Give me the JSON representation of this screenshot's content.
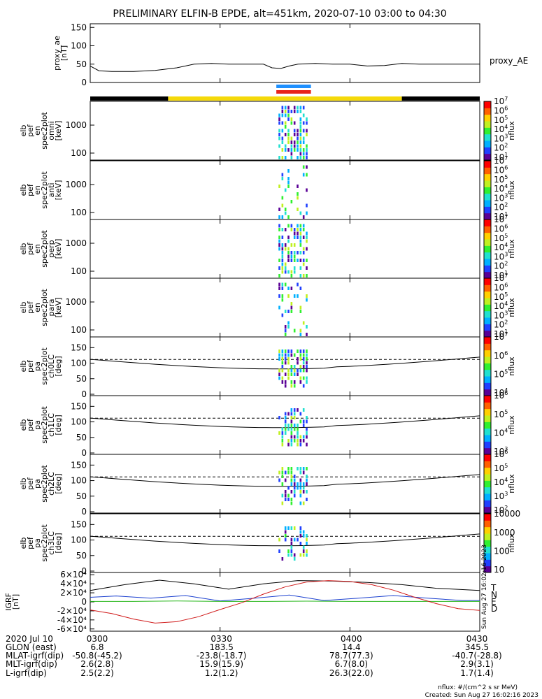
{
  "title": "PRELIMINARY ELFIN-B EPDE, alt=451km, 2020-07-10 03:00 to 04:30",
  "colors": {
    "blue_bar": "#1e90ff",
    "red_bar": "#e8241b",
    "sun_bar": "#f5d90a",
    "dark_bar": "#000000",
    "grf_T": "#000000",
    "grf_N": "#1a3fcf",
    "grf_E": "#2bb81f",
    "grf_D": "#d01a1a"
  },
  "time_axis": {
    "start": "03:00",
    "end": "04:30",
    "ticks": [
      "0300",
      "0330",
      "0400",
      "0430"
    ],
    "tick_minutes": [
      0,
      30,
      60,
      90
    ]
  },
  "eclipse_bar": {
    "segments": [
      {
        "state": "shadow",
        "from_min": 0,
        "to_min": 18
      },
      {
        "state": "sunlight",
        "from_min": 18,
        "to_min": 72
      },
      {
        "state": "shadow",
        "from_min": 72,
        "to_min": 90
      }
    ]
  },
  "science_bars": {
    "from_min": 43,
    "to_min": 51
  },
  "chart_data": [
    {
      "type": "line",
      "id": "proxy_ae",
      "ylabel": "proxy_ae\n[nT]",
      "yticks": [
        0,
        50,
        100,
        150
      ],
      "ylim": [
        0,
        160
      ],
      "legend": "proxy_AE",
      "x_min": [
        0,
        2,
        5,
        10,
        15,
        20,
        24,
        28,
        32,
        36,
        40,
        42,
        44,
        46,
        48,
        52,
        56,
        60,
        64,
        68,
        72,
        76,
        80,
        85,
        90
      ],
      "y": [
        45,
        32,
        30,
        30,
        33,
        40,
        50,
        52,
        50,
        50,
        50,
        40,
        38,
        45,
        50,
        52,
        50,
        50,
        45,
        46,
        52,
        50,
        50,
        50,
        50
      ]
    },
    {
      "type": "heatmap",
      "id": "en_omni",
      "ylabel": "elb\npef\nen\nspec2plot\nomni\n[keV]",
      "yticks": [
        "100",
        "1000"
      ],
      "colorbar": {
        "label": "nflux",
        "ticks": [
          "10^1",
          "10^2",
          "10^3",
          "10^4",
          "10^5",
          "10^6",
          "10^7"
        ]
      }
    },
    {
      "type": "heatmap",
      "id": "en_anti",
      "ylabel": "elb\npef\nen\nspec2plot\nanti\n[keV]",
      "yticks": [
        "100",
        "1000"
      ],
      "colorbar": {
        "label": "nflux",
        "ticks": [
          "10^1",
          "10^2",
          "10^3",
          "10^4",
          "10^5",
          "10^6",
          "10^7"
        ]
      }
    },
    {
      "type": "heatmap",
      "id": "en_perp",
      "ylabel": "elb\npef\nen\nspec2plot\nperp\n[keV]",
      "yticks": [
        "100",
        "1000"
      ],
      "colorbar": {
        "label": "nflux",
        "ticks": [
          "10^1",
          "10^2",
          "10^3",
          "10^4",
          "10^5",
          "10^6",
          "10^7"
        ]
      }
    },
    {
      "type": "heatmap",
      "id": "en_para",
      "ylabel": "elb\npef\nen\nspec2plot\npara\n[keV]",
      "yticks": [
        "100",
        "1000"
      ],
      "colorbar": {
        "label": "nflux",
        "ticks": [
          "10^1",
          "10^2",
          "10^3",
          "10^4",
          "10^5",
          "10^6",
          "10^7"
        ]
      }
    },
    {
      "type": "heatmap",
      "id": "pa_ch0",
      "ylabel": "elb\npef\npa\nspec2plot\nch0LC\n[deg]",
      "yticks": [
        "0",
        "50",
        "100",
        "150"
      ],
      "colorbar": {
        "label": "nflux",
        "ticks": [
          "10^4",
          "10^5",
          "10^6",
          "10^7"
        ]
      }
    },
    {
      "type": "heatmap",
      "id": "pa_ch1",
      "ylabel": "elb\npef\npa\nspec2plot\nch1LC\n[deg]",
      "yticks": [
        "0",
        "50",
        "100",
        "150"
      ],
      "colorbar": {
        "label": "nflux",
        "ticks": [
          "10^3",
          "10^4",
          "10^5",
          "10^6"
        ]
      }
    },
    {
      "type": "heatmap",
      "id": "pa_ch2",
      "ylabel": "elb\npef\npa\nspec2plot\nch2LC\n[deg]",
      "yticks": [
        "0",
        "50",
        "100",
        "150"
      ],
      "colorbar": {
        "label": "nflux",
        "ticks": [
          "10^2",
          "10^3",
          "10^4",
          "10^5",
          "10^6"
        ]
      }
    },
    {
      "type": "heatmap",
      "id": "pa_ch3",
      "ylabel": "elb\npef\npa\nspec2plot\nch3LC\n[deg]",
      "yticks": [
        "0",
        "50",
        "100",
        "150"
      ],
      "colorbar": {
        "label": "nflux",
        "ticks": [
          "10",
          "100",
          "1000",
          "10000"
        ]
      }
    },
    {
      "type": "line",
      "id": "igrf",
      "ylabel": "IGRF\n[nT]",
      "yticks": [
        "-6×10⁴",
        "-4×10⁴",
        "-2×10⁴",
        "0",
        "2×10⁴",
        "4×10⁴",
        "6×10⁴"
      ],
      "ylim": [
        -65000,
        65000
      ],
      "legend": [
        "T",
        "N",
        "E",
        "D"
      ],
      "series": [
        {
          "name": "T",
          "x_min": [
            0,
            8,
            16,
            24,
            32,
            40,
            48,
            56,
            64,
            72,
            80,
            90
          ],
          "y": [
            25000,
            38000,
            48000,
            40000,
            28000,
            40000,
            47000,
            46000,
            43000,
            38000,
            30000,
            25000
          ]
        },
        {
          "name": "N",
          "x_min": [
            0,
            6,
            14,
            22,
            30,
            38,
            46,
            54,
            62,
            70,
            78,
            86,
            90
          ],
          "y": [
            10000,
            13000,
            8000,
            14000,
            2000,
            8000,
            15000,
            3000,
            8000,
            14000,
            8000,
            3000,
            3000
          ]
        },
        {
          "name": "E",
          "x_min": [
            0,
            10,
            20,
            30,
            40,
            50,
            60,
            70,
            80,
            90
          ],
          "y": [
            1000,
            1000,
            2000,
            1000,
            1000,
            1500,
            1000,
            1000,
            1000,
            1000
          ]
        },
        {
          "name": "D",
          "x_min": [
            0,
            5,
            10,
            15,
            20,
            25,
            30,
            35,
            40,
            45,
            50,
            55,
            60,
            65,
            70,
            75,
            80,
            85,
            90
          ],
          "y": [
            -18000,
            -26000,
            -38000,
            -47000,
            -44000,
            -33000,
            -17000,
            -2000,
            17000,
            33000,
            44000,
            47000,
            45000,
            38000,
            26000,
            10000,
            -4000,
            -15000,
            -19000
          ]
        }
      ]
    }
  ],
  "footer": {
    "labels": [
      "2020 Jul 10",
      "GLON (east)",
      "MLAT-igrf(dip)",
      "MLT-igrf(dip)",
      "L-igrf(dip)"
    ],
    "columns": [
      {
        "time": "0300",
        "GLON": "6.8",
        "MLAT": "-50.8(-45.2)",
        "MLT": "2.6(2.8)",
        "L": "2.5(2.2)"
      },
      {
        "time": "0330",
        "GLON": "183.5",
        "MLAT": "-23.8(-18.7)",
        "MLT": "15.9(15.9)",
        "L": "1.2(1.2)"
      },
      {
        "time": "0400",
        "GLON": "14.4",
        "MLAT": "78.7(77.3)",
        "MLT": "6.7(8.0)",
        "L": "26.3(22.0)"
      },
      {
        "time": "0430",
        "GLON": "345.5",
        "MLAT": "-40.7(-28.8)",
        "MLT": "2.9(3.1)",
        "L": "1.7(1.4)"
      }
    ],
    "units_note": "nflux: #/(cm^2 s sr MeV)",
    "created": "Created: Sun Aug 27 16:02:16 2023",
    "side_stamp": "Sun Aug 27 16:02:16 2023"
  }
}
